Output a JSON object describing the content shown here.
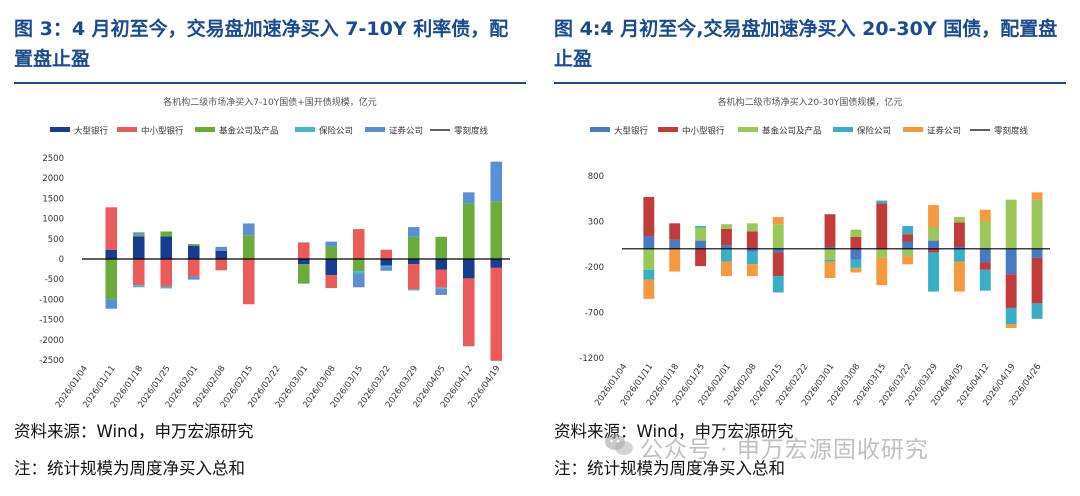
{
  "left": {
    "title": "图 3：4 月初至今，交易盘加速净买入 7-10Y 利率债，配置盘止盈",
    "source": "资料来源：Wind，申万宏源研究",
    "note": "注：统计规模为周度净买入总和"
  },
  "right": {
    "title": "图 4:4 月初至今,交易盘加速净买入 20-30Y 国债，配置盘止盈",
    "source": "资料来源：Wind，申万宏源研究",
    "note": "注：统计规模为周度净买入总和"
  },
  "watermark": "公众号 · 申万宏源固收研究",
  "chart_data": [
    {
      "type": "bar",
      "stacked": true,
      "title": "各机构二级市场净买入7-10Y国债+国开债规模，亿元",
      "xlabel": "",
      "ylabel": "",
      "ylim": [
        -2500,
        2500
      ],
      "yticks": [
        -2500,
        -2000,
        -1500,
        -1000,
        -500,
        0,
        500,
        1000,
        1500,
        2000,
        2500
      ],
      "categories": [
        "2026/01/04",
        "2026/01/11",
        "2026/01/18",
        "2026/01/25",
        "2026/02/01",
        "2026/02/08",
        "2026/02/15",
        "2026/02/22",
        "2026/03/01",
        "2026/03/08",
        "2026/03/15",
        "2026/03/22",
        "2026/03/29",
        "2026/04/05",
        "2026/04/12",
        "2026/04/19"
      ],
      "series": [
        {
          "name": "大型银行",
          "color": "#1a3c8f",
          "values": [
            0,
            230,
            560,
            560,
            330,
            200,
            0,
            0,
            -130,
            -400,
            0,
            -160,
            -130,
            -260,
            -480,
            -220
          ]
        },
        {
          "name": "中小型银行",
          "color": "#ea5b5b",
          "values": [
            0,
            1050,
            -650,
            -680,
            -430,
            -280,
            -1120,
            0,
            410,
            -320,
            740,
            230,
            -620,
            -450,
            -1680,
            -2300
          ]
        },
        {
          "name": "基金公司及产品",
          "color": "#6aab3b",
          "values": [
            0,
            -1000,
            40,
            120,
            40,
            0,
            590,
            0,
            -480,
            310,
            -300,
            0,
            550,
            550,
            1380,
            1430
          ]
        },
        {
          "name": "保险公司",
          "color": "#4bb8c8",
          "values": [
            0,
            0,
            -50,
            -50,
            0,
            0,
            0,
            0,
            0,
            0,
            -60,
            -40,
            -30,
            -30,
            0,
            0
          ]
        },
        {
          "name": "证券公司",
          "color": "#5a8fd6",
          "values": [
            0,
            -230,
            60,
            0,
            -80,
            100,
            290,
            0,
            0,
            120,
            -340,
            -90,
            240,
            -150,
            270,
            980
          ]
        }
      ],
      "reference_line": {
        "name": "零刻度线",
        "value": 0,
        "color": "#000000"
      }
    },
    {
      "type": "bar",
      "stacked": true,
      "title": "各机构二级市场净买入20-30Y国债规模，亿元",
      "xlabel": "",
      "ylabel": "",
      "ylim": [
        -1200,
        800
      ],
      "yticks": [
        -1200,
        -700,
        -200,
        300,
        800
      ],
      "categories": [
        "2026/01/04",
        "2026/01/11",
        "2026/01/18",
        "2026/01/25",
        "2026/02/01",
        "2026/02/08",
        "2026/02/15",
        "2026/02/22",
        "2026/03/01",
        "2026/03/08",
        "2026/03/15",
        "2026/03/22",
        "2026/03/29",
        "2026/04/05",
        "2026/04/12",
        "2026/04/19",
        "2026/04/26"
      ],
      "series": [
        {
          "name": "大型银行",
          "color": "#4a79c4",
          "values": [
            0,
            140,
            100,
            90,
            40,
            -30,
            -40,
            0,
            20,
            -120,
            0,
            80,
            90,
            20,
            -150,
            -280,
            -100
          ]
        },
        {
          "name": "中小型银行",
          "color": "#c23b3b",
          "values": [
            0,
            430,
            180,
            -190,
            180,
            190,
            -260,
            0,
            360,
            130,
            500,
            80,
            -40,
            270,
            -80,
            -370,
            -500
          ]
        },
        {
          "name": "基金公司及产品",
          "color": "#9bc65a",
          "values": [
            0,
            -230,
            0,
            140,
            50,
            90,
            270,
            0,
            -120,
            80,
            -100,
            -80,
            150,
            60,
            300,
            540,
            540
          ]
        },
        {
          "name": "保险公司",
          "color": "#38afc5",
          "values": [
            0,
            -110,
            0,
            20,
            -140,
            -140,
            -180,
            0,
            -20,
            -90,
            30,
            90,
            -430,
            -140,
            -230,
            -180,
            -170
          ]
        },
        {
          "name": "证券公司",
          "color": "#f59a3f",
          "values": [
            0,
            -210,
            -250,
            0,
            -160,
            -130,
            80,
            0,
            -180,
            -50,
            -300,
            -90,
            240,
            -330,
            130,
            -40,
            80
          ]
        }
      ],
      "reference_line": {
        "name": "零刻度线",
        "value": 0,
        "color": "#000000"
      }
    }
  ]
}
